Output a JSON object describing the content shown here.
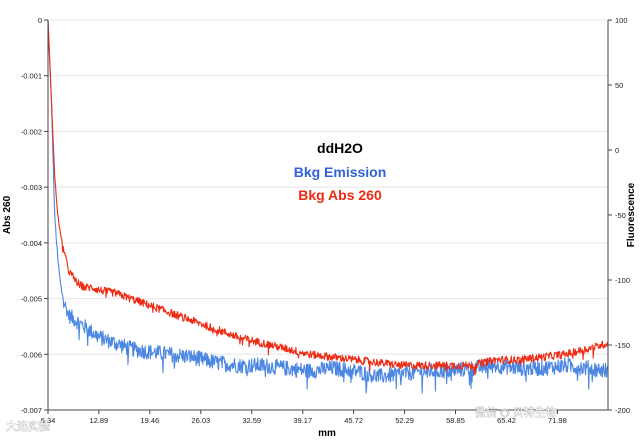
{
  "chart_data": {
    "type": "line",
    "title": "",
    "xlabel": "mm",
    "ylabel_left": "Abs 260",
    "ylabel_right": "Fluorescence",
    "x_ticks": [
      "6.34",
      "12.89",
      "19.46",
      "26.03",
      "32.59",
      "39.17",
      "45.72",
      "52.29",
      "58.85",
      "65.42",
      "71.98"
    ],
    "xlim": [
      6.34,
      78.5
    ],
    "ylim_left": [
      -0.007,
      0
    ],
    "yticks_left": [
      "0",
      "-0.001",
      "-0.002",
      "-0.003",
      "-0.004",
      "-0.005",
      "-0.006",
      "-0.007"
    ],
    "ylim_right": [
      -200,
      100
    ],
    "yticks_right": [
      "100",
      "50",
      "0",
      "-50",
      "-100",
      "-150",
      "-200"
    ],
    "legend": {
      "placement": "center",
      "entries": [
        {
          "label": "ddH2O",
          "color": "#000000"
        },
        {
          "label": "Bkg Emission",
          "color": "#2f64d6"
        },
        {
          "label": "Bkg Abs 260",
          "color": "#ee2a12"
        }
      ]
    },
    "series": [
      {
        "axis": "left",
        "color": "#4a86e2",
        "noise": 0.00014,
        "x": [
          6.34,
          6.8,
          7.2,
          7.6,
          8.0,
          8.5,
          9.0,
          10.0,
          11.0,
          12.0,
          13.0,
          15.0,
          17.0,
          19.0,
          22.0,
          25.0,
          28.0,
          31.0,
          34.0,
          37.0,
          40.0,
          43.0,
          46.0,
          49.0,
          52.0,
          55.0,
          58.0,
          61.0,
          64.0,
          67.0,
          70.0,
          73.0,
          76.0,
          78.5
        ],
        "values": [
          0.0,
          -0.0015,
          -0.0035,
          -0.0043,
          -0.0048,
          -0.0051,
          -0.0053,
          -0.0054,
          -0.0055,
          -0.0056,
          -0.0057,
          -0.0058,
          -0.0059,
          -0.00595,
          -0.006,
          -0.00605,
          -0.00615,
          -0.0062,
          -0.0062,
          -0.00625,
          -0.0063,
          -0.00625,
          -0.0063,
          -0.0064,
          -0.00635,
          -0.0063,
          -0.0063,
          -0.00625,
          -0.0062,
          -0.00625,
          -0.00625,
          -0.0062,
          -0.00625,
          -0.0063
        ]
      },
      {
        "axis": "left",
        "color": "#ee2a12",
        "noise": 7e-05,
        "x": [
          6.34,
          6.8,
          7.2,
          7.6,
          8.0,
          8.5,
          9.0,
          10.0,
          11.0,
          12.0,
          13.0,
          15.0,
          17.0,
          19.0,
          22.0,
          25.0,
          28.0,
          31.0,
          34.0,
          37.0,
          40.0,
          43.0,
          46.0,
          49.0,
          52.0,
          55.0,
          58.0,
          61.0,
          64.0,
          67.0,
          70.0,
          73.0,
          76.0,
          78.5
        ],
        "values": [
          0.0,
          -0.0015,
          -0.0028,
          -0.0035,
          -0.0039,
          -0.0042,
          -0.0045,
          -0.0047,
          -0.0048,
          -0.0048,
          -0.00485,
          -0.0049,
          -0.005,
          -0.0051,
          -0.00525,
          -0.0054,
          -0.00555,
          -0.0057,
          -0.0058,
          -0.0059,
          -0.006,
          -0.00605,
          -0.0061,
          -0.00615,
          -0.0062,
          -0.0062,
          -0.0062,
          -0.0062,
          -0.0061,
          -0.0061,
          -0.00605,
          -0.006,
          -0.0059,
          -0.0058
        ]
      }
    ]
  },
  "watermark_left": "大连实验",
  "watermark_right": "微信 ◉ 贝特生物"
}
